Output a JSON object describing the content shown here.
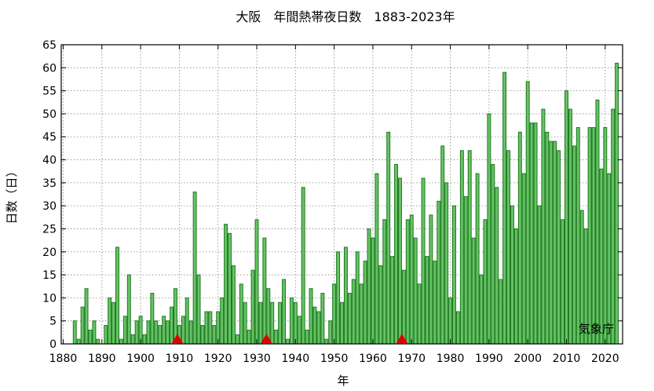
{
  "chart_data": {
    "type": "bar",
    "title": "大阪　年間熱帯夜日数　1883-2023年",
    "xlabel": "年",
    "ylabel": "日数（日）",
    "credit": "気象庁",
    "xlim": [
      1879.5,
      2024.5
    ],
    "ylim": [
      0,
      65
    ],
    "yticks": [
      0,
      5,
      10,
      15,
      20,
      25,
      30,
      35,
      40,
      45,
      50,
      55,
      60,
      65
    ],
    "xticks": [
      1880,
      1890,
      1900,
      1910,
      1920,
      1930,
      1940,
      1950,
      1960,
      1970,
      1980,
      1990,
      2000,
      2010,
      2020
    ],
    "grid": true,
    "colors": {
      "bar_fill": "#66c266",
      "bar_edge": "#1f7a1f",
      "marker": "#e00000"
    },
    "markers_years": [
      1909.5,
      1932.5,
      1967.5
    ],
    "years": [
      1883,
      1884,
      1885,
      1886,
      1887,
      1888,
      1889,
      1890,
      1891,
      1892,
      1893,
      1894,
      1895,
      1896,
      1897,
      1898,
      1899,
      1900,
      1901,
      1902,
      1903,
      1904,
      1905,
      1906,
      1907,
      1908,
      1909,
      1910,
      1911,
      1912,
      1913,
      1914,
      1915,
      1916,
      1917,
      1918,
      1919,
      1920,
      1921,
      1922,
      1923,
      1924,
      1925,
      1926,
      1927,
      1928,
      1929,
      1930,
      1931,
      1932,
      1933,
      1934,
      1935,
      1936,
      1937,
      1938,
      1939,
      1940,
      1941,
      1942,
      1943,
      1944,
      1945,
      1946,
      1947,
      1948,
      1949,
      1950,
      1951,
      1952,
      1953,
      1954,
      1955,
      1956,
      1957,
      1958,
      1959,
      1960,
      1961,
      1962,
      1963,
      1964,
      1965,
      1966,
      1967,
      1968,
      1969,
      1970,
      1971,
      1972,
      1973,
      1974,
      1975,
      1976,
      1977,
      1978,
      1979,
      1980,
      1981,
      1982,
      1983,
      1984,
      1985,
      1986,
      1987,
      1988,
      1989,
      1990,
      1991,
      1992,
      1993,
      1994,
      1995,
      1996,
      1997,
      1998,
      1999,
      2000,
      2001,
      2002,
      2003,
      2004,
      2005,
      2006,
      2007,
      2008,
      2009,
      2010,
      2011,
      2012,
      2013,
      2014,
      2015,
      2016,
      2017,
      2018,
      2019,
      2020,
      2021,
      2022,
      2023
    ],
    "values": [
      5,
      1,
      8,
      12,
      3,
      5,
      1,
      0,
      4,
      10,
      9,
      21,
      1,
      6,
      15,
      2,
      5,
      6,
      2,
      5,
      11,
      5,
      4,
      6,
      5,
      8,
      12,
      4,
      6,
      10,
      5,
      33,
      15,
      4,
      7,
      7,
      4,
      7,
      10,
      26,
      24,
      17,
      2,
      13,
      9,
      3,
      16,
      27,
      9,
      23,
      12,
      9,
      3,
      9,
      14,
      1,
      10,
      9,
      6,
      34,
      3,
      12,
      8,
      7,
      11,
      1,
      5,
      13,
      20,
      9,
      21,
      11,
      14,
      20,
      13,
      18,
      25,
      23,
      37,
      17,
      27,
      46,
      19,
      39,
      36,
      16,
      27,
      28,
      23,
      13,
      36,
      19,
      28,
      18,
      31,
      43,
      35,
      10,
      30,
      7,
      42,
      32,
      42,
      23,
      37,
      15,
      27,
      50,
      39,
      34,
      14,
      59,
      42,
      30,
      25,
      46,
      37,
      57,
      48,
      48,
      30,
      51,
      46,
      44,
      44,
      42,
      27,
      55,
      51,
      43,
      47,
      29,
      25,
      47,
      47,
      53,
      38,
      47,
      37,
      51,
      61
    ]
  }
}
